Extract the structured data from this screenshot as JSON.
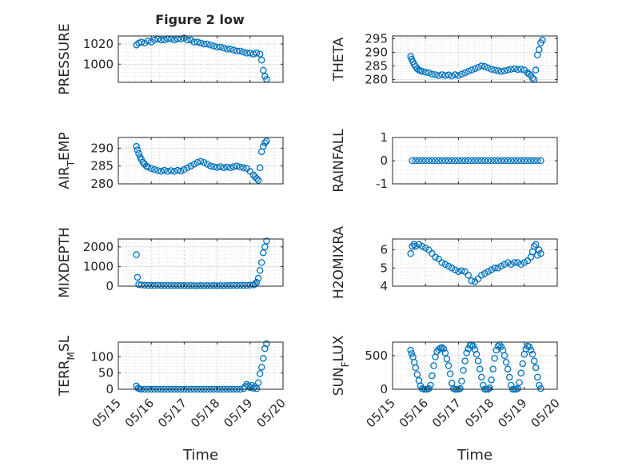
{
  "figure": {
    "title": "Figure 2 low",
    "xlabel": "Time"
  },
  "chart_data": [
    {
      "type": "scatter",
      "ylabel": "PRESSURE",
      "ylabel_sub": "",
      "ylabel_rest": "",
      "xlim": [
        0,
        5
      ],
      "ylim": [
        982,
        1028
      ],
      "yticks": [
        1000,
        1020
      ],
      "show_x_ticklabels": false,
      "grid": "on",
      "title": "Figure 2 low",
      "x": [
        0.55,
        0.62,
        0.7,
        0.8,
        0.9,
        1.0,
        1.1,
        1.2,
        1.3,
        1.4,
        1.5,
        1.6,
        1.7,
        1.8,
        1.9,
        2.0,
        2.1,
        2.2,
        2.3,
        2.4,
        2.5,
        2.6,
        2.7,
        2.8,
        2.9,
        3.0,
        3.1,
        3.2,
        3.3,
        3.4,
        3.5,
        3.6,
        3.7,
        3.8,
        3.9,
        4.0,
        4.1,
        4.2,
        4.3,
        4.35,
        4.4,
        4.45,
        4.5
      ],
      "y": [
        1019,
        1021,
        1022,
        1021,
        1023,
        1022,
        1024,
        1025,
        1024,
        1024,
        1025,
        1025,
        1024,
        1025,
        1025,
        1026,
        1024,
        1024,
        1022,
        1022,
        1021,
        1020,
        1020,
        1019,
        1018,
        1017,
        1017,
        1016,
        1015,
        1015,
        1014,
        1013,
        1013,
        1012,
        1011,
        1011,
        1010,
        1011,
        1010,
        1004,
        994,
        988,
        985
      ]
    },
    {
      "type": "scatter",
      "ylabel": "THETA",
      "ylabel_sub": "",
      "ylabel_rest": "",
      "xlim": [
        0,
        5
      ],
      "ylim": [
        279,
        296
      ],
      "yticks": [
        280,
        285,
        290,
        295
      ],
      "show_x_ticklabels": false,
      "grid": "on",
      "x": [
        0.55,
        0.58,
        0.62,
        0.66,
        0.7,
        0.75,
        0.8,
        0.85,
        0.9,
        1.0,
        1.1,
        1.2,
        1.3,
        1.4,
        1.5,
        1.6,
        1.7,
        1.8,
        1.9,
        2.0,
        2.1,
        2.2,
        2.3,
        2.4,
        2.5,
        2.6,
        2.7,
        2.8,
        2.9,
        3.0,
        3.1,
        3.2,
        3.3,
        3.4,
        3.5,
        3.6,
        3.7,
        3.8,
        3.9,
        4.0,
        4.1,
        4.15,
        4.2,
        4.25,
        4.3,
        4.35,
        4.4,
        4.45,
        4.5,
        4.55
      ],
      "y": [
        288.5,
        287.5,
        286.5,
        285.5,
        284.8,
        284,
        283.5,
        283.2,
        283,
        282.7,
        282.5,
        282,
        281.8,
        281.5,
        281.8,
        281.5,
        281.7,
        281.3,
        281.8,
        281.5,
        282,
        282.5,
        283,
        283.5,
        284,
        284.5,
        285,
        284.8,
        284.3,
        283.8,
        283.5,
        283.3,
        283,
        283.2,
        283.5,
        283.8,
        284,
        283.7,
        283.8,
        283.5,
        282.5,
        282,
        281.5,
        280.5,
        280,
        283.5,
        289,
        291,
        293.5,
        294.5
      ]
    },
    {
      "type": "scatter",
      "ylabel": "AIR",
      "ylabel_sub": "T",
      "ylabel_rest": "EMP",
      "xlim": [
        0,
        5
      ],
      "ylim": [
        280,
        293
      ],
      "yticks": [
        280,
        285,
        290
      ],
      "show_x_ticklabels": false,
      "grid": "on",
      "x": [
        0.55,
        0.58,
        0.62,
        0.66,
        0.7,
        0.75,
        0.8,
        0.85,
        0.9,
        1.0,
        1.1,
        1.2,
        1.3,
        1.4,
        1.5,
        1.6,
        1.7,
        1.8,
        1.9,
        2.0,
        2.1,
        2.2,
        2.3,
        2.4,
        2.5,
        2.6,
        2.7,
        2.8,
        2.9,
        3.0,
        3.1,
        3.2,
        3.3,
        3.4,
        3.5,
        3.6,
        3.7,
        3.8,
        3.9,
        4.0,
        4.1,
        4.15,
        4.2,
        4.25,
        4.3,
        4.35,
        4.4,
        4.45,
        4.5
      ],
      "y": [
        290.5,
        289.5,
        288.5,
        287.5,
        286.8,
        286,
        285.5,
        285,
        284.7,
        284.3,
        284,
        283.7,
        283.5,
        283.8,
        283.5,
        283.7,
        283.5,
        283.8,
        283.6,
        284,
        284.5,
        285,
        285.5,
        286,
        286.3,
        286,
        285.5,
        285,
        284.8,
        284.6,
        284.8,
        284.5,
        284.7,
        284.5,
        284.8,
        285,
        284.7,
        284.5,
        284.3,
        283.5,
        282.5,
        282,
        281.5,
        281,
        284.5,
        289,
        290.5,
        291.5,
        292
      ]
    },
    {
      "type": "scatter",
      "ylabel": "RAINFALL",
      "ylabel_sub": "",
      "ylabel_rest": "",
      "xlim": [
        0,
        5
      ],
      "ylim": [
        -1,
        1
      ],
      "yticks": [
        -1,
        0,
        1
      ],
      "show_x_ticklabels": false,
      "grid": "on",
      "x": [
        0.6,
        0.7,
        0.8,
        0.9,
        1.0,
        1.1,
        1.2,
        1.3,
        1.4,
        1.5,
        1.6,
        1.7,
        1.8,
        1.9,
        2.0,
        2.1,
        2.2,
        2.3,
        2.4,
        2.5,
        2.6,
        2.7,
        2.8,
        2.9,
        3.0,
        3.1,
        3.2,
        3.3,
        3.4,
        3.5,
        3.6,
        3.7,
        3.8,
        3.9,
        4.0,
        4.1,
        4.2,
        4.3,
        4.4,
        4.5
      ],
      "y": [
        0,
        0,
        0,
        0,
        0,
        0,
        0,
        0,
        0,
        0,
        0,
        0,
        0,
        0,
        0,
        0,
        0,
        0,
        0,
        0,
        0,
        0,
        0,
        0,
        0,
        0,
        0,
        0,
        0,
        0,
        0,
        0,
        0,
        0,
        0,
        0,
        0,
        0,
        0,
        0
      ]
    },
    {
      "type": "scatter",
      "ylabel": "MIXDEPTH",
      "ylabel_sub": "",
      "ylabel_rest": "",
      "xlim": [
        0,
        5
      ],
      "ylim": [
        0,
        2400
      ],
      "yticks": [
        0,
        1000,
        2000
      ],
      "show_x_ticklabels": false,
      "grid": "on",
      "x": [
        0.55,
        0.58,
        0.62,
        0.7,
        0.8,
        0.9,
        1.0,
        1.1,
        1.2,
        1.3,
        1.4,
        1.5,
        1.6,
        1.7,
        1.8,
        1.9,
        2.0,
        2.1,
        2.2,
        2.3,
        2.4,
        2.5,
        2.6,
        2.7,
        2.8,
        2.9,
        3.0,
        3.1,
        3.2,
        3.3,
        3.4,
        3.5,
        3.6,
        3.7,
        3.8,
        3.9,
        4.0,
        4.1,
        4.15,
        4.2,
        4.25,
        4.3,
        4.35,
        4.4,
        4.45,
        4.5
      ],
      "y": [
        1600,
        450,
        80,
        60,
        50,
        40,
        40,
        30,
        40,
        30,
        30,
        30,
        30,
        30,
        30,
        30,
        30,
        20,
        30,
        20,
        20,
        30,
        20,
        30,
        20,
        30,
        20,
        30,
        20,
        30,
        30,
        40,
        30,
        40,
        40,
        40,
        50,
        60,
        100,
        200,
        400,
        800,
        1200,
        1700,
        2000,
        2300
      ]
    },
    {
      "type": "scatter",
      "ylabel": "H2OMIXRA",
      "ylabel_sub": "",
      "ylabel_rest": "",
      "xlim": [
        0,
        5
      ],
      "ylim": [
        4,
        6.6
      ],
      "yticks": [
        4,
        5,
        6
      ],
      "show_x_ticklabels": false,
      "grid": "on",
      "x": [
        0.55,
        0.6,
        0.65,
        0.7,
        0.8,
        0.9,
        1.0,
        1.1,
        1.2,
        1.3,
        1.4,
        1.5,
        1.6,
        1.7,
        1.8,
        1.9,
        2.0,
        2.1,
        2.2,
        2.3,
        2.4,
        2.5,
        2.6,
        2.7,
        2.8,
        2.9,
        3.0,
        3.1,
        3.2,
        3.3,
        3.4,
        3.5,
        3.6,
        3.7,
        3.8,
        3.9,
        4.0,
        4.1,
        4.2,
        4.25,
        4.3,
        4.35,
        4.4,
        4.45,
        4.5
      ],
      "y": [
        5.8,
        6.2,
        6.3,
        6.2,
        6.3,
        6.2,
        6.1,
        6.0,
        5.8,
        5.6,
        5.5,
        5.3,
        5.2,
        5.1,
        5.0,
        4.9,
        4.8,
        4.85,
        4.8,
        4.6,
        4.3,
        4.25,
        4.4,
        4.6,
        4.7,
        4.8,
        4.9,
        5.0,
        5.0,
        5.1,
        5.2,
        5.3,
        5.2,
        5.3,
        5.3,
        5.2,
        5.3,
        5.4,
        5.6,
        5.9,
        6.2,
        6.3,
        5.7,
        6.0,
        5.8
      ]
    },
    {
      "type": "scatter",
      "ylabel": "TERR",
      "ylabel_sub": "M",
      "ylabel_rest": "SL",
      "xlim": [
        0,
        5
      ],
      "ylim": [
        0,
        145
      ],
      "yticks": [
        0,
        50,
        100
      ],
      "show_x_ticklabels": true,
      "xticklabels": [
        "05/15",
        "05/16",
        "05/17",
        "05/18",
        "05/19",
        "05/20"
      ],
      "grid": "on",
      "x": [
        0.55,
        0.6,
        0.65,
        0.7,
        0.8,
        0.9,
        1.0,
        1.1,
        1.2,
        1.3,
        1.4,
        1.5,
        1.6,
        1.7,
        1.8,
        1.9,
        2.0,
        2.1,
        2.2,
        2.3,
        2.4,
        2.5,
        2.6,
        2.7,
        2.8,
        2.9,
        3.0,
        3.1,
        3.2,
        3.3,
        3.4,
        3.5,
        3.6,
        3.7,
        3.8,
        3.85,
        3.9,
        3.95,
        4.0,
        4.05,
        4.1,
        4.15,
        4.2,
        4.25,
        4.3,
        4.35,
        4.4,
        4.45,
        4.5
      ],
      "y": [
        10,
        3,
        1,
        0,
        0,
        0,
        0,
        0,
        0,
        0,
        0,
        0,
        0,
        0,
        0,
        0,
        0,
        0,
        0,
        0,
        0,
        0,
        0,
        0,
        0,
        0,
        0,
        0,
        0,
        0,
        0,
        0,
        0,
        0,
        2,
        8,
        15,
        10,
        5,
        12,
        3,
        8,
        2,
        20,
        48,
        68,
        95,
        125,
        140
      ]
    },
    {
      "type": "scatter",
      "ylabel": "SUN",
      "ylabel_sub": "F",
      "ylabel_rest": "LUX",
      "xlim": [
        0,
        5
      ],
      "ylim": [
        0,
        700
      ],
      "yticks": [
        0,
        500
      ],
      "show_x_ticklabels": true,
      "xticklabels": [
        "05/15",
        "05/16",
        "05/17",
        "05/18",
        "05/19",
        "05/20"
      ],
      "grid": "on",
      "x": [
        0.55,
        0.58,
        0.62,
        0.66,
        0.7,
        0.75,
        0.8,
        0.85,
        0.9,
        0.95,
        1.0,
        1.05,
        1.1,
        1.15,
        1.2,
        1.25,
        1.3,
        1.35,
        1.4,
        1.45,
        1.5,
        1.55,
        1.6,
        1.65,
        1.7,
        1.75,
        1.8,
        1.85,
        1.9,
        1.95,
        2.0,
        2.05,
        2.1,
        2.15,
        2.2,
        2.25,
        2.3,
        2.35,
        2.4,
        2.45,
        2.5,
        2.55,
        2.6,
        2.65,
        2.7,
        2.75,
        2.8,
        2.85,
        2.9,
        2.95,
        3.0,
        3.05,
        3.1,
        3.15,
        3.2,
        3.25,
        3.3,
        3.35,
        3.4,
        3.45,
        3.5,
        3.55,
        3.6,
        3.65,
        3.7,
        3.75,
        3.8,
        3.85,
        3.9,
        3.95,
        4.0,
        4.05,
        4.1,
        4.15,
        4.2,
        4.25,
        4.3,
        4.35,
        4.4,
        4.45,
        4.5
      ],
      "y": [
        580,
        530,
        480,
        400,
        320,
        220,
        130,
        50,
        10,
        0,
        0,
        0,
        10,
        60,
        200,
        350,
        480,
        560,
        590,
        610,
        620,
        600,
        540,
        450,
        350,
        230,
        90,
        10,
        0,
        0,
        0,
        10,
        120,
        280,
        420,
        540,
        600,
        650,
        660,
        640,
        590,
        520,
        420,
        300,
        180,
        60,
        0,
        0,
        0,
        20,
        140,
        300,
        460,
        580,
        640,
        660,
        630,
        580,
        500,
        400,
        300,
        180,
        60,
        0,
        0,
        0,
        10,
        100,
        240,
        380,
        520,
        600,
        640,
        630,
        580,
        520,
        420,
        320,
        180,
        60,
        10
      ]
    }
  ]
}
